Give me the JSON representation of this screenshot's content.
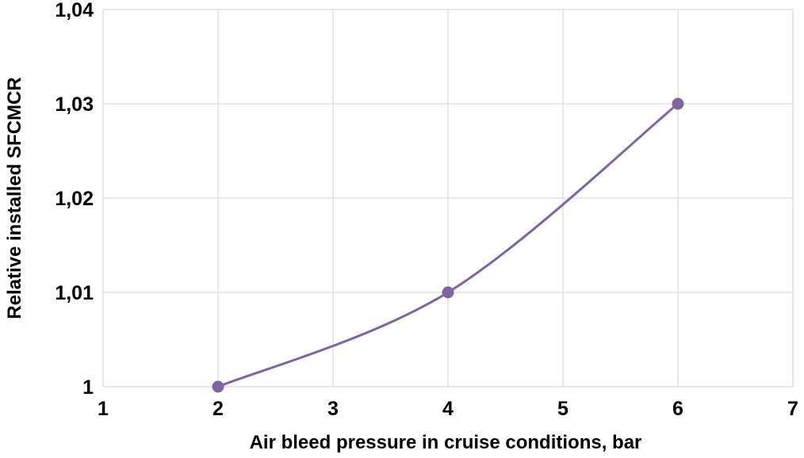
{
  "chart_data": {
    "type": "line",
    "title": "",
    "xlabel": "Air bleed pressure in cruise conditions, bar",
    "ylabel": "Relative installed SFCMCR",
    "xlim": [
      1,
      7
    ],
    "ylim": [
      1,
      1.04
    ],
    "x_ticks": [
      1,
      2,
      3,
      4,
      5,
      6,
      7
    ],
    "x_tick_labels": [
      "1",
      "2",
      "3",
      "4",
      "5",
      "6",
      "7"
    ],
    "y_ticks": [
      1,
      1.01,
      1.02,
      1.03,
      1.04
    ],
    "y_tick_labels": [
      "1",
      "1,01",
      "1,02",
      "1,03",
      "1,04"
    ],
    "grid": true,
    "smooth": true,
    "series": [
      {
        "x": [
          2,
          4,
          6
        ],
        "y": [
          1.0,
          1.01,
          1.03
        ],
        "color": "#8064a2"
      }
    ]
  }
}
